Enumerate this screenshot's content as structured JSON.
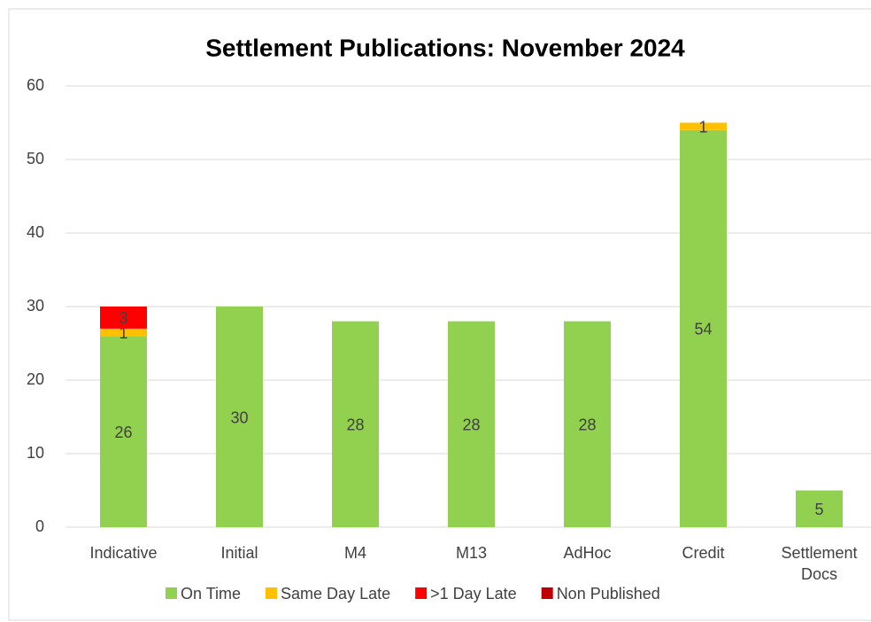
{
  "chart_data": {
    "type": "stacked_bar",
    "title": "Settlement Publications: November 2024",
    "categories": [
      "Indicative",
      "Initial",
      "M4",
      "M13",
      "AdHoc",
      "Credit",
      "Settlement Docs"
    ],
    "series": [
      {
        "name": "On Time",
        "color": "#92d050",
        "values": [
          26,
          30,
          28,
          28,
          28,
          54,
          5
        ]
      },
      {
        "name": "Same Day Late",
        "color": "#ffc000",
        "values": [
          1,
          null,
          null,
          null,
          null,
          1,
          null
        ]
      },
      {
        "name": ">1 Day Late",
        "color": "#ff0000",
        "values": [
          3,
          null,
          null,
          null,
          null,
          null,
          null
        ]
      },
      {
        "name": "Non Published",
        "color": "#c00000",
        "values": [
          null,
          null,
          null,
          null,
          null,
          null,
          null
        ]
      }
    ],
    "ylim": [
      0,
      60
    ],
    "yticks": [
      0,
      10,
      20,
      30,
      40,
      50,
      60
    ],
    "grid": true,
    "legend": "bottom"
  }
}
